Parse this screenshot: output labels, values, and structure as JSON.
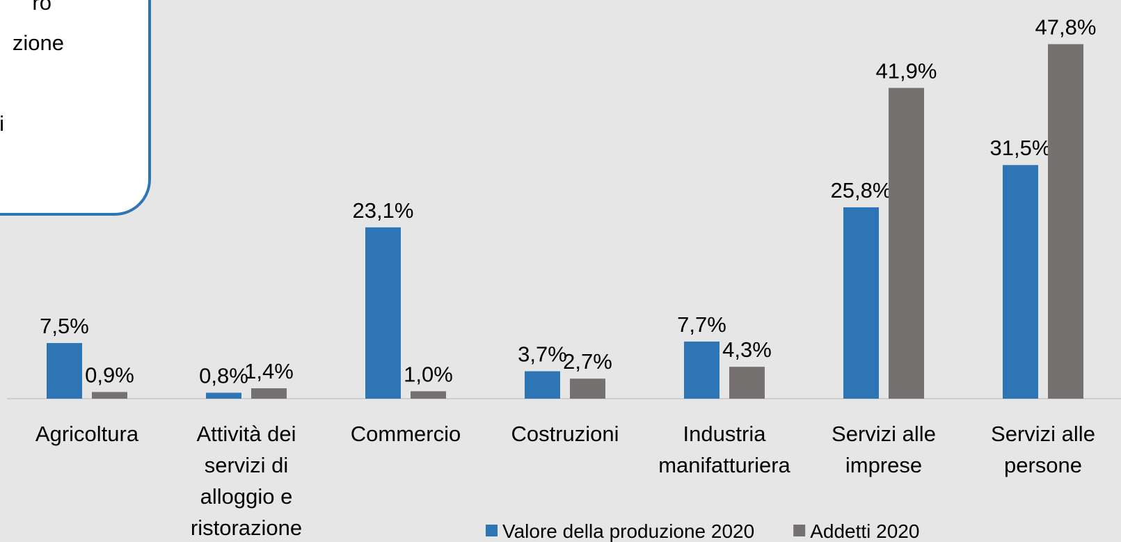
{
  "chart_data": {
    "type": "bar",
    "annotation": [
      "ro",
      "zione",
      "i"
    ],
    "categories": [
      "Agricoltura",
      "Attività dei servizi di alloggio e ristorazione",
      "Commercio",
      "Costruzioni",
      "Industria manifatturiera",
      "Servizi alle imprese",
      "Servizi alle persone"
    ],
    "series": [
      {
        "name": "Valore della produzione 2020",
        "color": "#2e75b6",
        "values": [
          7.5,
          0.8,
          23.1,
          3.7,
          7.7,
          25.8,
          31.5
        ],
        "value_labels": [
          "7,5%",
          "0,8%",
          "23,1%",
          "3,7%",
          "7,7%",
          "25,8%",
          "31,5%"
        ]
      },
      {
        "name": "Addetti 2020",
        "color": "#767171",
        "values": [
          0.9,
          1.4,
          1.0,
          2.7,
          4.3,
          41.9,
          47.8
        ],
        "value_labels": [
          "0,9%",
          "1,4%",
          "1,0%",
          "2,7%",
          "4,3%",
          "41,9%",
          "47,8%"
        ]
      }
    ],
    "legend": "bottom"
  }
}
